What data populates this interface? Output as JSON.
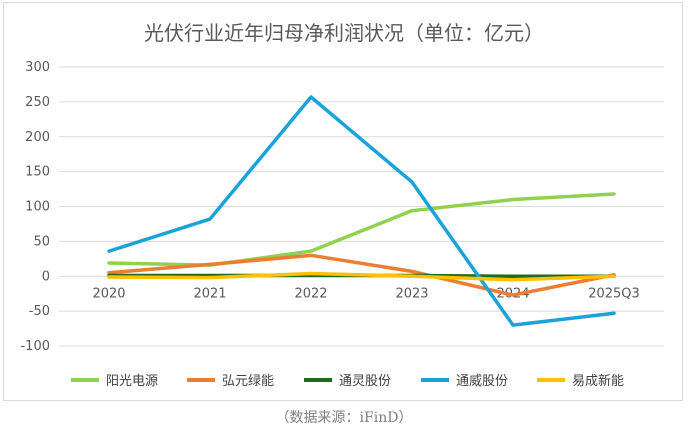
{
  "chart_data": {
    "type": "line",
    "title": "光伏行业近年归母净利润状况（单位：亿元）",
    "categories": [
      "2020",
      "2021",
      "2022",
      "2023",
      "2024",
      "2025Q3"
    ],
    "yticks": [
      "300",
      "250",
      "200",
      "150",
      "100",
      "50",
      "0",
      "-50",
      "-100"
    ],
    "ylim": [
      -100,
      300
    ],
    "grid": true,
    "legend_position": "bottom",
    "series": [
      {
        "name": "阳光电源",
        "color": "#92d050",
        "values": [
          19,
          16,
          36,
          94,
          110,
          118
        ]
      },
      {
        "name": "弘元绿能",
        "color": "#ed7d31",
        "values": [
          5,
          17,
          30,
          7,
          -27,
          2
        ]
      },
      {
        "name": "通灵股份",
        "color": "#1e6b1e",
        "values": [
          1,
          1,
          1,
          1,
          0,
          0
        ]
      },
      {
        "name": "通威股份",
        "color": "#1aa3d9",
        "values": [
          36,
          82,
          257,
          135,
          -70,
          -53
        ]
      },
      {
        "name": "易成新能",
        "color": "#ffc000",
        "values": [
          -1,
          -2,
          4,
          0,
          -5,
          0
        ]
      }
    ]
  },
  "source": "（数据来源：iFinD）"
}
